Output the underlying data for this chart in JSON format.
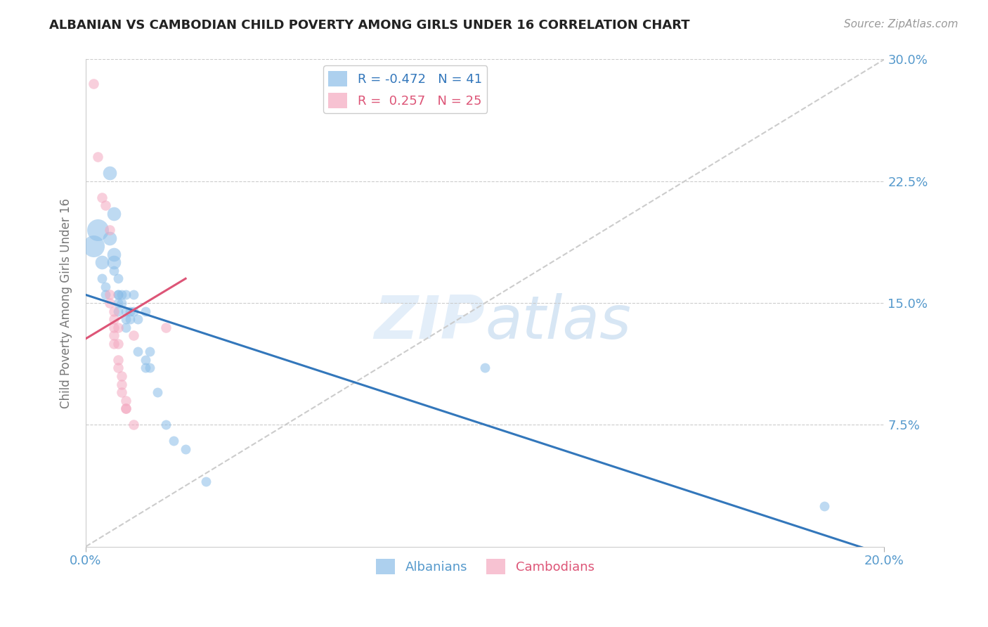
{
  "title": "ALBANIAN VS CAMBODIAN CHILD POVERTY AMONG GIRLS UNDER 16 CORRELATION CHART",
  "source": "Source: ZipAtlas.com",
  "ylabel": "Child Poverty Among Girls Under 16",
  "xlim": [
    0.0,
    0.2
  ],
  "ylim": [
    0.0,
    0.3
  ],
  "legend_blue_r": "-0.472",
  "legend_blue_n": "41",
  "legend_pink_r": "0.257",
  "legend_pink_n": "25",
  "blue_color": "#8abde8",
  "pink_color": "#f4a8c0",
  "line_blue_color": "#3377bb",
  "line_pink_color": "#dd5577",
  "axis_color": "#5599cc",
  "grid_color": "#cccccc",
  "watermark_color": "#ddeeff",
  "albanians": [
    [
      0.002,
      0.185
    ],
    [
      0.003,
      0.195
    ],
    [
      0.004,
      0.175
    ],
    [
      0.004,
      0.165
    ],
    [
      0.005,
      0.16
    ],
    [
      0.005,
      0.155
    ],
    [
      0.006,
      0.23
    ],
    [
      0.006,
      0.19
    ],
    [
      0.007,
      0.205
    ],
    [
      0.007,
      0.18
    ],
    [
      0.007,
      0.175
    ],
    [
      0.007,
      0.17
    ],
    [
      0.008,
      0.165
    ],
    [
      0.008,
      0.155
    ],
    [
      0.008,
      0.155
    ],
    [
      0.008,
      0.15
    ],
    [
      0.008,
      0.145
    ],
    [
      0.009,
      0.155
    ],
    [
      0.009,
      0.15
    ],
    [
      0.01,
      0.155
    ],
    [
      0.01,
      0.145
    ],
    [
      0.01,
      0.14
    ],
    [
      0.01,
      0.135
    ],
    [
      0.011,
      0.145
    ],
    [
      0.011,
      0.14
    ],
    [
      0.012,
      0.155
    ],
    [
      0.012,
      0.145
    ],
    [
      0.013,
      0.14
    ],
    [
      0.013,
      0.12
    ],
    [
      0.015,
      0.145
    ],
    [
      0.015,
      0.115
    ],
    [
      0.015,
      0.11
    ],
    [
      0.016,
      0.12
    ],
    [
      0.016,
      0.11
    ],
    [
      0.018,
      0.095
    ],
    [
      0.02,
      0.075
    ],
    [
      0.022,
      0.065
    ],
    [
      0.025,
      0.06
    ],
    [
      0.03,
      0.04
    ],
    [
      0.1,
      0.11
    ],
    [
      0.185,
      0.025
    ]
  ],
  "cambodians": [
    [
      0.002,
      0.285
    ],
    [
      0.003,
      0.24
    ],
    [
      0.004,
      0.215
    ],
    [
      0.005,
      0.21
    ],
    [
      0.006,
      0.195
    ],
    [
      0.006,
      0.155
    ],
    [
      0.006,
      0.15
    ],
    [
      0.007,
      0.145
    ],
    [
      0.007,
      0.14
    ],
    [
      0.007,
      0.135
    ],
    [
      0.007,
      0.13
    ],
    [
      0.007,
      0.125
    ],
    [
      0.008,
      0.135
    ],
    [
      0.008,
      0.125
    ],
    [
      0.008,
      0.115
    ],
    [
      0.008,
      0.11
    ],
    [
      0.009,
      0.105
    ],
    [
      0.009,
      0.1
    ],
    [
      0.009,
      0.095
    ],
    [
      0.01,
      0.09
    ],
    [
      0.01,
      0.085
    ],
    [
      0.01,
      0.085
    ],
    [
      0.012,
      0.13
    ],
    [
      0.012,
      0.075
    ],
    [
      0.02,
      0.135
    ]
  ],
  "blue_trend_x": [
    0.0,
    0.2
  ],
  "blue_trend_y": [
    0.155,
    -0.005
  ],
  "pink_trend_x": [
    0.0,
    0.025
  ],
  "pink_trend_y": [
    0.128,
    0.165
  ],
  "ref_line_x": [
    0.0,
    0.2
  ],
  "ref_line_y": [
    0.0,
    0.3
  ]
}
